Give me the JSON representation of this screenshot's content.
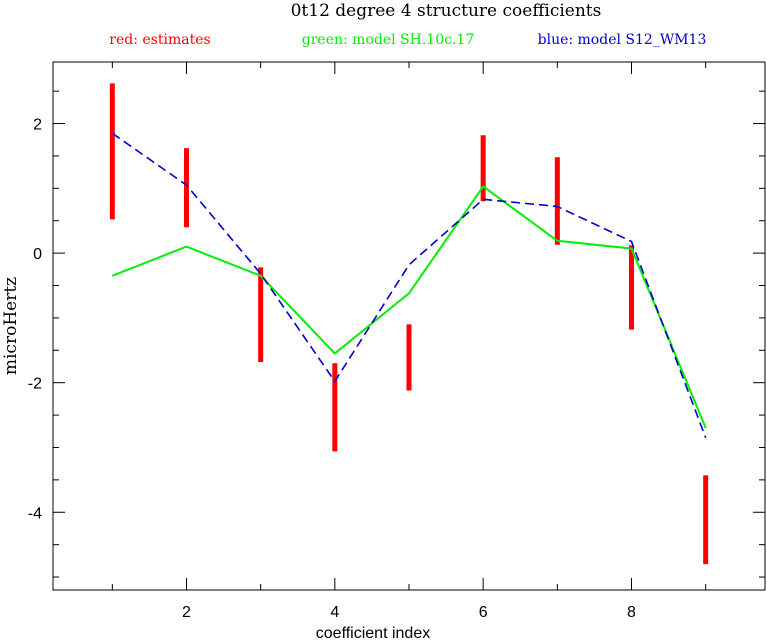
{
  "chart_data": {
    "type": "line",
    "title": "0t12 degree 4 structure coefficients",
    "xlabel": "coefficient index",
    "ylabel": "microHertz",
    "xlim": [
      0.2,
      9.8
    ],
    "ylim": [
      -5.2,
      2.95
    ],
    "x_ticks": [
      2,
      4,
      6,
      8
    ],
    "y_ticks": [
      2,
      0,
      -2,
      -4
    ],
    "x": [
      1,
      2,
      3,
      4,
      5,
      6,
      7,
      8,
      9
    ],
    "legend": [
      {
        "text": "red: estimates",
        "color": "#ff0000"
      },
      {
        "text": "green: model SH.10c.17",
        "color": "#00ee00"
      },
      {
        "text": "blue: model S12_WM13",
        "color": "#0000cc"
      }
    ],
    "estimates": {
      "color": "#ff0000",
      "low": [
        0.52,
        0.4,
        -1.68,
        -3.06,
        -2.12,
        0.8,
        0.13,
        -1.18,
        -4.8
      ],
      "high": [
        2.62,
        1.62,
        -0.22,
        -1.7,
        -1.1,
        1.82,
        1.48,
        0.12,
        -3.43
      ]
    },
    "series": [
      {
        "color": "#00ee00",
        "style": "solid",
        "values": [
          -0.35,
          0.1,
          -0.35,
          -1.55,
          -0.62,
          1.03,
          0.19,
          0.07,
          -2.7
        ]
      },
      {
        "color": "#0000cc",
        "style": "dashed",
        "values": [
          1.85,
          1.05,
          -0.32,
          -1.98,
          -0.18,
          0.83,
          0.72,
          0.18,
          -2.85
        ]
      }
    ],
    "grid": false
  }
}
